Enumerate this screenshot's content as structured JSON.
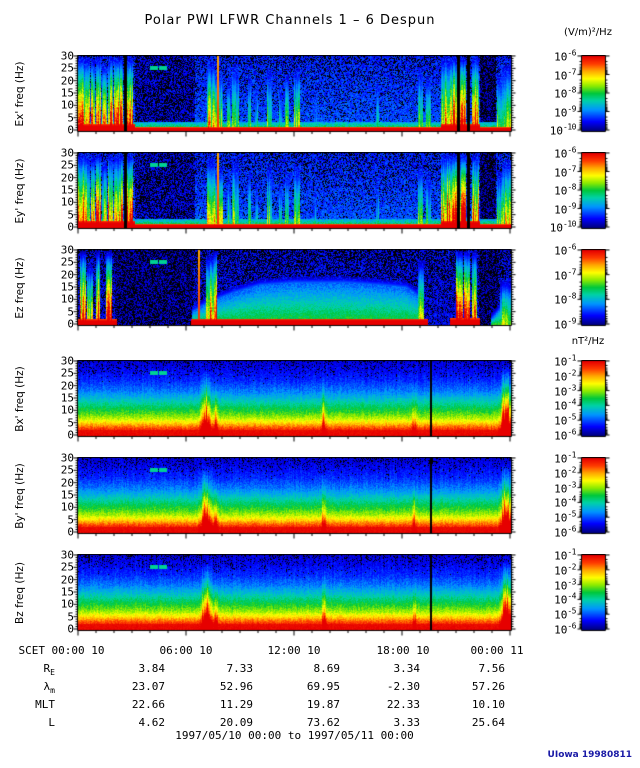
{
  "title": "Polar PWI LFWR Channels 1 – 6 Despun",
  "units": {
    "electric": "(V/m)²/Hz",
    "magnetic": "nT²/Hz"
  },
  "footer": {
    "date_range": "1997/05/10 00:00 to 1997/05/11 00:00",
    "credit": "UIowa 19980811"
  },
  "colors": {
    "frame": "#000000",
    "credit_blue": "#1a1aa6",
    "colormap": [
      [
        0.0,
        [
          0,
          0,
          130
        ]
      ],
      [
        0.12,
        [
          0,
          0,
          255
        ]
      ],
      [
        0.28,
        [
          0,
          150,
          255
        ]
      ],
      [
        0.4,
        [
          0,
          210,
          170
        ]
      ],
      [
        0.5,
        [
          0,
          200,
          60
        ]
      ],
      [
        0.6,
        [
          140,
          235,
          0
        ]
      ],
      [
        0.7,
        [
          255,
          255,
          0
        ]
      ],
      [
        0.8,
        [
          255,
          170,
          0
        ]
      ],
      [
        0.9,
        [
          255,
          60,
          0
        ]
      ],
      [
        1.0,
        [
          230,
          0,
          0
        ]
      ]
    ]
  },
  "chart_data": {
    "type": "heatmap",
    "subtype": "spectrogram",
    "title": "Polar PWI LFWR Channels 1 – 6 Despun",
    "x": {
      "label": "SCET",
      "start": "1997/05/10 00:00",
      "end": "1997/05/11 00:00",
      "hours": 24,
      "major_tick_hours": 6,
      "minor_tick_hours": 1,
      "tick_labels": [
        "00:00 10",
        "06:00 10",
        "12:00 10",
        "18:00 10",
        "00:00 11"
      ]
    },
    "y": {
      "min": 0,
      "max": 30,
      "unit": "Hz",
      "ticks": [
        0,
        5,
        10,
        15,
        20,
        25,
        30
      ]
    },
    "ephemeris": {
      "time_label": "SCET",
      "rows": [
        {
          "main": "R",
          "sub": "E",
          "values": [
            "3.84",
            "7.33",
            "8.69",
            "3.34",
            "7.56"
          ]
        },
        {
          "main": "λ",
          "sub": "m",
          "values": [
            "23.07",
            "52.96",
            "69.95",
            "-2.30",
            "57.26"
          ]
        },
        {
          "main": "MLT",
          "sub": "",
          "values": [
            "22.66",
            "11.29",
            "19.87",
            "22.33",
            "10.10"
          ]
        },
        {
          "main": "L",
          "sub": "",
          "values": [
            "4.62",
            "20.09",
            "73.62",
            "3.33",
            "25.64"
          ]
        }
      ]
    },
    "panels": [
      {
        "id": "ex",
        "label": "Ex' freq (Hz)",
        "kind": "E",
        "seed": 11,
        "colorbar": {
          "unit": "(V/m)²/Hz",
          "exponents": [
            -6,
            -7,
            -8,
            -9,
            -10
          ]
        },
        "bursts": [
          [
            0.0,
            0.012,
            30,
            1.0
          ],
          [
            0.012,
            0.026,
            30,
            0.85
          ],
          [
            0.028,
            0.038,
            29,
            0.95
          ],
          [
            0.04,
            0.052,
            30,
            1.0
          ],
          [
            0.054,
            0.066,
            27,
            0.8
          ],
          [
            0.068,
            0.08,
            30,
            0.95
          ],
          [
            0.082,
            0.104,
            30,
            1.0
          ],
          [
            0.113,
            0.127,
            30,
            1.0
          ],
          [
            0.298,
            0.316,
            28,
            0.75
          ],
          [
            0.316,
            0.334,
            24,
            0.65
          ],
          [
            0.344,
            0.352,
            20,
            0.5
          ],
          [
            0.355,
            0.372,
            27,
            0.62
          ],
          [
            0.392,
            0.4,
            23,
            0.55
          ],
          [
            0.408,
            0.416,
            18,
            0.45
          ],
          [
            0.437,
            0.447,
            25,
            0.6
          ],
          [
            0.464,
            0.472,
            18,
            0.45
          ],
          [
            0.478,
            0.488,
            23,
            0.55
          ],
          [
            0.5,
            0.513,
            25,
            0.6
          ],
          [
            0.545,
            0.552,
            16,
            0.35
          ],
          [
            0.688,
            0.695,
            20,
            0.4
          ],
          [
            0.787,
            0.798,
            25,
            0.55
          ],
          [
            0.805,
            0.815,
            22,
            0.5
          ],
          [
            0.838,
            0.852,
            30,
            0.9
          ],
          [
            0.852,
            0.876,
            30,
            1.0
          ],
          [
            0.884,
            0.898,
            30,
            1.0
          ],
          [
            0.912,
            0.926,
            30,
            0.95
          ],
          [
            0.968,
            0.98,
            23,
            0.55
          ],
          [
            0.98,
            1.0,
            27,
            0.7
          ]
        ],
        "gaps": [
          [
            0.106,
            0.112
          ],
          [
            0.877,
            0.883
          ],
          [
            0.9,
            0.906
          ]
        ],
        "redlines": [
          0.323
        ],
        "darkzones": [
          [
            0.13,
            0.27,
            0.1
          ],
          [
            0.93,
            0.966,
            0.045
          ]
        ],
        "redbase": [
          [
            0.0,
            0.13,
            2.8
          ],
          [
            0.13,
            0.84,
            1.3
          ],
          [
            0.84,
            0.93,
            2.8
          ],
          [
            0.93,
            1.0,
            1.3
          ]
        ],
        "dashes": [
          [
            0.165,
            0.184
          ],
          [
            0.187,
            0.205
          ]
        ]
      },
      {
        "id": "ey",
        "label": "Ey' freq (Hz)",
        "kind": "E",
        "seed": 22,
        "colorbar": {
          "unit": "(V/m)²/Hz",
          "exponents": [
            -6,
            -7,
            -8,
            -9,
            -10
          ]
        },
        "bursts": [
          [
            0.0,
            0.012,
            30,
            1.0
          ],
          [
            0.012,
            0.026,
            30,
            0.85
          ],
          [
            0.028,
            0.038,
            29,
            0.95
          ],
          [
            0.04,
            0.052,
            30,
            1.0
          ],
          [
            0.054,
            0.066,
            27,
            0.8
          ],
          [
            0.068,
            0.08,
            30,
            0.95
          ],
          [
            0.082,
            0.104,
            30,
            1.0
          ],
          [
            0.113,
            0.127,
            30,
            1.0
          ],
          [
            0.298,
            0.316,
            28,
            0.75
          ],
          [
            0.316,
            0.334,
            24,
            0.65
          ],
          [
            0.344,
            0.352,
            20,
            0.5
          ],
          [
            0.355,
            0.372,
            27,
            0.62
          ],
          [
            0.392,
            0.4,
            23,
            0.55
          ],
          [
            0.408,
            0.416,
            18,
            0.45
          ],
          [
            0.437,
            0.447,
            25,
            0.6
          ],
          [
            0.464,
            0.472,
            18,
            0.45
          ],
          [
            0.478,
            0.488,
            23,
            0.55
          ],
          [
            0.5,
            0.513,
            25,
            0.6
          ],
          [
            0.545,
            0.552,
            16,
            0.35
          ],
          [
            0.688,
            0.695,
            20,
            0.4
          ],
          [
            0.787,
            0.798,
            25,
            0.55
          ],
          [
            0.805,
            0.815,
            22,
            0.5
          ],
          [
            0.838,
            0.852,
            30,
            0.9
          ],
          [
            0.852,
            0.876,
            30,
            1.0
          ],
          [
            0.884,
            0.898,
            30,
            1.0
          ],
          [
            0.912,
            0.926,
            30,
            0.95
          ],
          [
            0.968,
            0.98,
            23,
            0.55
          ],
          [
            0.98,
            1.0,
            27,
            0.7
          ]
        ],
        "gaps": [
          [
            0.106,
            0.112
          ],
          [
            0.877,
            0.883
          ],
          [
            0.9,
            0.906
          ]
        ],
        "redlines": [
          0.323
        ],
        "darkzones": [
          [
            0.13,
            0.27,
            0.1
          ],
          [
            0.93,
            0.966,
            0.045
          ]
        ],
        "redbase": [
          [
            0.0,
            0.13,
            2.8
          ],
          [
            0.13,
            0.84,
            1.3
          ],
          [
            0.84,
            0.93,
            2.8
          ],
          [
            0.93,
            1.0,
            1.3
          ]
        ],
        "dashes": [
          [
            0.165,
            0.184
          ],
          [
            0.187,
            0.205
          ]
        ]
      },
      {
        "id": "ez",
        "label": "Ez freq (Hz)",
        "kind": "Ez",
        "seed": 33,
        "colorbar": {
          "unit": "(V/m)²/Hz",
          "exponents": [
            -6,
            -7,
            -8,
            -9
          ]
        },
        "bursts": [
          [
            0.004,
            0.018,
            30,
            1.0
          ],
          [
            0.02,
            0.034,
            24,
            0.7
          ],
          [
            0.04,
            0.05,
            30,
            1.0
          ],
          [
            0.064,
            0.078,
            30,
            1.0
          ],
          [
            0.294,
            0.312,
            28,
            0.85
          ],
          [
            0.312,
            0.32,
            30,
            1.0
          ],
          [
            0.786,
            0.8,
            26,
            0.7
          ],
          [
            0.874,
            0.89,
            30,
            1.0
          ],
          [
            0.893,
            0.906,
            30,
            0.95
          ],
          [
            0.912,
            0.922,
            30,
            0.9
          ],
          [
            0.975,
            1.0,
            18,
            0.55
          ]
        ],
        "gaps": [],
        "redlines": [
          0.279
        ],
        "darkzones": [
          [
            0.085,
            0.265,
            0.06
          ],
          [
            0.928,
            0.972,
            0.05
          ]
        ],
        "hiss": [
          [
            0.262,
            5
          ],
          [
            0.3,
            9
          ],
          [
            0.36,
            13
          ],
          [
            0.42,
            16
          ],
          [
            0.5,
            17
          ],
          [
            0.62,
            17
          ],
          [
            0.7,
            16
          ],
          [
            0.76,
            15
          ],
          [
            0.792,
            11
          ],
          [
            0.8,
            3
          ]
        ],
        "hiss2": [
          [
            0.955,
            2
          ],
          [
            0.975,
            6
          ],
          [
            1.0,
            13
          ]
        ],
        "redbase": [
          [
            0.0,
            0.09,
            2.2
          ],
          [
            0.26,
            0.81,
            2.4
          ],
          [
            0.86,
            0.93,
            2.6
          ]
        ],
        "dashes": [
          [
            0.165,
            0.184
          ],
          [
            0.187,
            0.205
          ]
        ]
      },
      {
        "id": "bx",
        "label": "Bx' freq (Hz)",
        "kind": "B",
        "seed": 44,
        "colorbar": {
          "unit": "nT²/Hz",
          "exponents": [
            -1,
            -2,
            -3,
            -4,
            -5,
            -6
          ]
        },
        "spikes": [
          [
            0.296,
            0.01,
            27,
            0.5
          ],
          [
            0.318,
            0.004,
            21,
            0.32
          ],
          [
            0.568,
            0.004,
            25,
            0.3
          ],
          [
            0.777,
            0.004,
            21,
            0.22
          ],
          [
            0.99,
            0.01,
            28,
            0.7
          ]
        ],
        "blacklines": [
          [
            0.8145,
            0.819
          ]
        ],
        "hlines": [
          [
            0.8,
            0.97,
            15
          ]
        ],
        "dashes": [
          [
            0.165,
            0.184
          ],
          [
            0.187,
            0.205
          ]
        ]
      },
      {
        "id": "by",
        "label": "By' freq (Hz)",
        "kind": "B",
        "seed": 55,
        "colorbar": {
          "unit": "nT²/Hz",
          "exponents": [
            -1,
            -2,
            -3,
            -4,
            -5,
            -6
          ]
        },
        "spikes": [
          [
            0.296,
            0.01,
            27,
            0.5
          ],
          [
            0.318,
            0.004,
            21,
            0.32
          ],
          [
            0.568,
            0.004,
            25,
            0.3
          ],
          [
            0.777,
            0.004,
            21,
            0.22
          ],
          [
            0.99,
            0.01,
            28,
            0.7
          ]
        ],
        "blacklines": [
          [
            0.8145,
            0.819
          ]
        ],
        "hlines": [
          [
            0.8,
            0.97,
            15
          ]
        ],
        "dashes": [
          [
            0.165,
            0.184
          ],
          [
            0.187,
            0.205
          ]
        ]
      },
      {
        "id": "bz",
        "label": "Bz freq (Hz)",
        "kind": "B",
        "seed": 66,
        "colorbar": {
          "unit": "nT²/Hz",
          "exponents": [
            -1,
            -2,
            -3,
            -4,
            -5,
            -6
          ]
        },
        "spikes": [
          [
            0.296,
            0.01,
            27,
            0.5
          ],
          [
            0.318,
            0.004,
            21,
            0.32
          ],
          [
            0.568,
            0.004,
            25,
            0.3
          ],
          [
            0.777,
            0.004,
            21,
            0.22
          ],
          [
            0.99,
            0.01,
            28,
            0.7
          ]
        ],
        "blacklines": [
          [
            0.8145,
            0.819
          ]
        ],
        "hlines": [
          [
            0.8,
            0.97,
            15
          ]
        ],
        "dashes": [
          [
            0.165,
            0.184
          ],
          [
            0.187,
            0.205
          ]
        ]
      }
    ]
  }
}
